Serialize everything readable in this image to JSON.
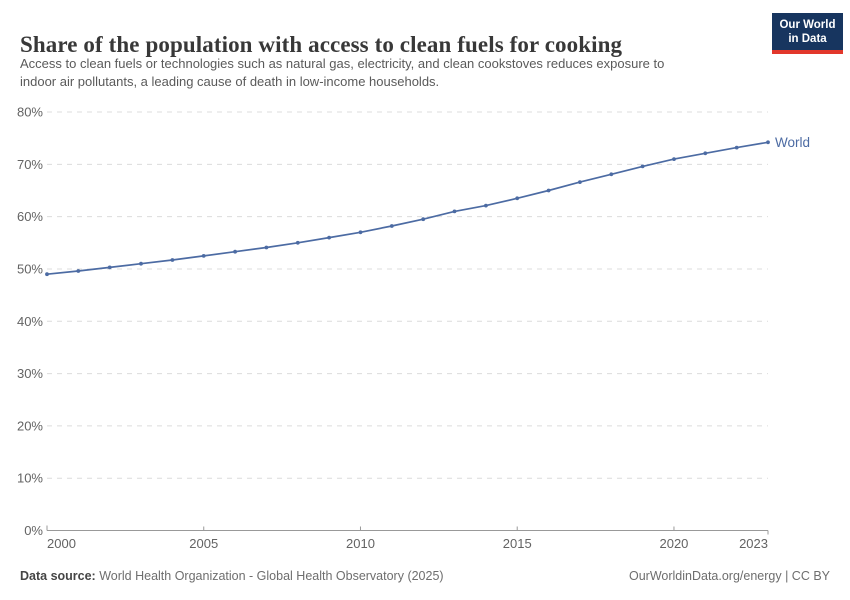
{
  "header": {
    "title": "Share of the population with access to clean fuels for cooking",
    "subtitle_lines": [
      "Access to clean fuels or technologies such as natural gas, electricity, and clean cookstoves reduces exposure to",
      "indoor air pollutants, a leading cause of death in low-income households."
    ]
  },
  "logo": {
    "line1": "Our World",
    "line2": "in Data",
    "bg_color": "#17355f",
    "accent_color": "#e2372b"
  },
  "chart_data": {
    "type": "line",
    "title": "Share of the population with access to clean fuels for cooking",
    "x": [
      2000,
      2001,
      2002,
      2003,
      2004,
      2005,
      2006,
      2007,
      2008,
      2009,
      2010,
      2011,
      2012,
      2013,
      2014,
      2015,
      2016,
      2017,
      2018,
      2019,
      2020,
      2021,
      2022,
      2023
    ],
    "series": [
      {
        "name": "World",
        "color": "#4c6ba3",
        "values": [
          49.0,
          49.6,
          50.3,
          51.0,
          51.7,
          52.5,
          53.3,
          54.1,
          55.0,
          56.0,
          57.0,
          58.2,
          59.5,
          61.0,
          62.1,
          63.5,
          65.0,
          66.6,
          68.1,
          69.6,
          71.0,
          72.1,
          73.2,
          74.2
        ]
      }
    ],
    "xticks": [
      2000,
      2005,
      2010,
      2015,
      2020,
      2023
    ],
    "yticks": [
      0,
      10,
      20,
      30,
      40,
      50,
      60,
      70,
      80
    ],
    "ytick_suffix": "%",
    "xlim": [
      2000,
      2023
    ],
    "ylim": [
      0,
      80
    ],
    "grid": "horizontal-dashed",
    "legend_position": "end-of-line",
    "grid_color": "#dcdcdc",
    "axis_color": "#999999",
    "tick_label_color": "#636363"
  },
  "footer": {
    "data_source_label": "Data source:",
    "data_source_value": " World Health Organization - Global Health Observatory (2025)",
    "credit": "OurWorldinData.org/energy | CC BY"
  }
}
